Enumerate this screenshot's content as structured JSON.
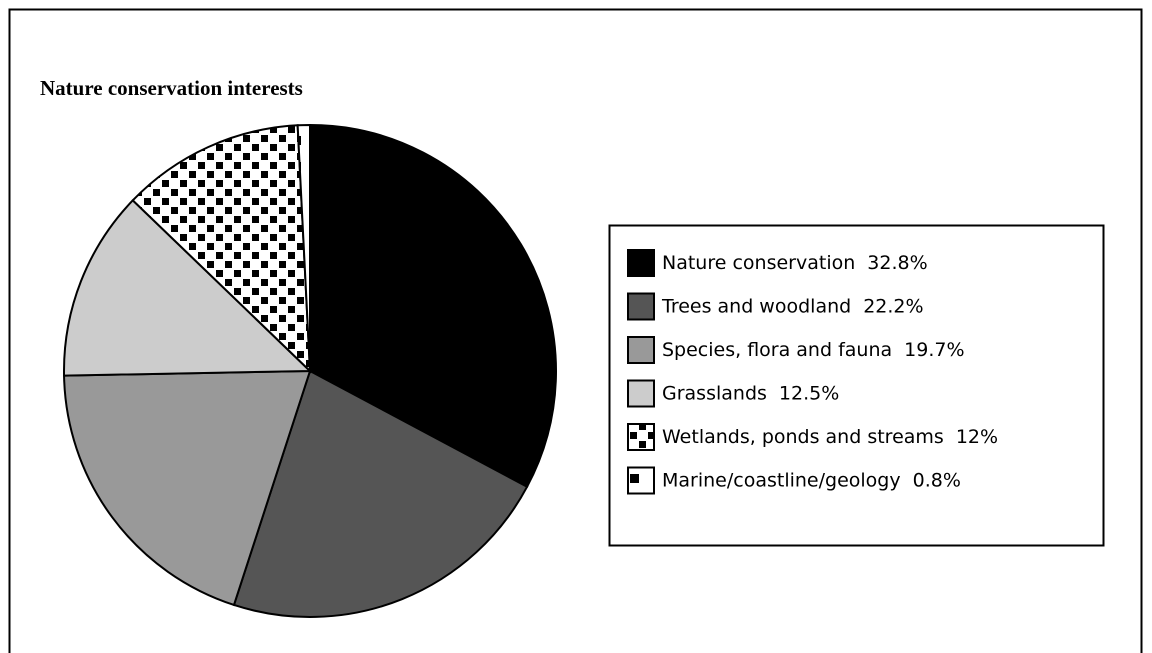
{
  "chart_data": {
    "type": "pie",
    "title": "Nature conservation interests",
    "categories": [
      "Nature conservation",
      "Trees and woodland",
      "Species, flora and fauna",
      "Grasslands",
      "Wetlands, ponds and streams",
      "Marine/coastline/geology"
    ],
    "values": [
      32.8,
      22.2,
      19.7,
      12.5,
      12,
      0.8
    ],
    "value_labels": [
      "32.8%",
      "22.2%",
      "19.7%",
      "12.5%",
      "12%",
      "0.8%"
    ],
    "colors": [
      "#000000",
      "#555555",
      "#999999",
      "#cccccc",
      "#000000",
      "#000000"
    ],
    "patterns": [
      "solid",
      "solid",
      "solid",
      "solid",
      "checker",
      "sparse"
    ],
    "legend": "right"
  }
}
